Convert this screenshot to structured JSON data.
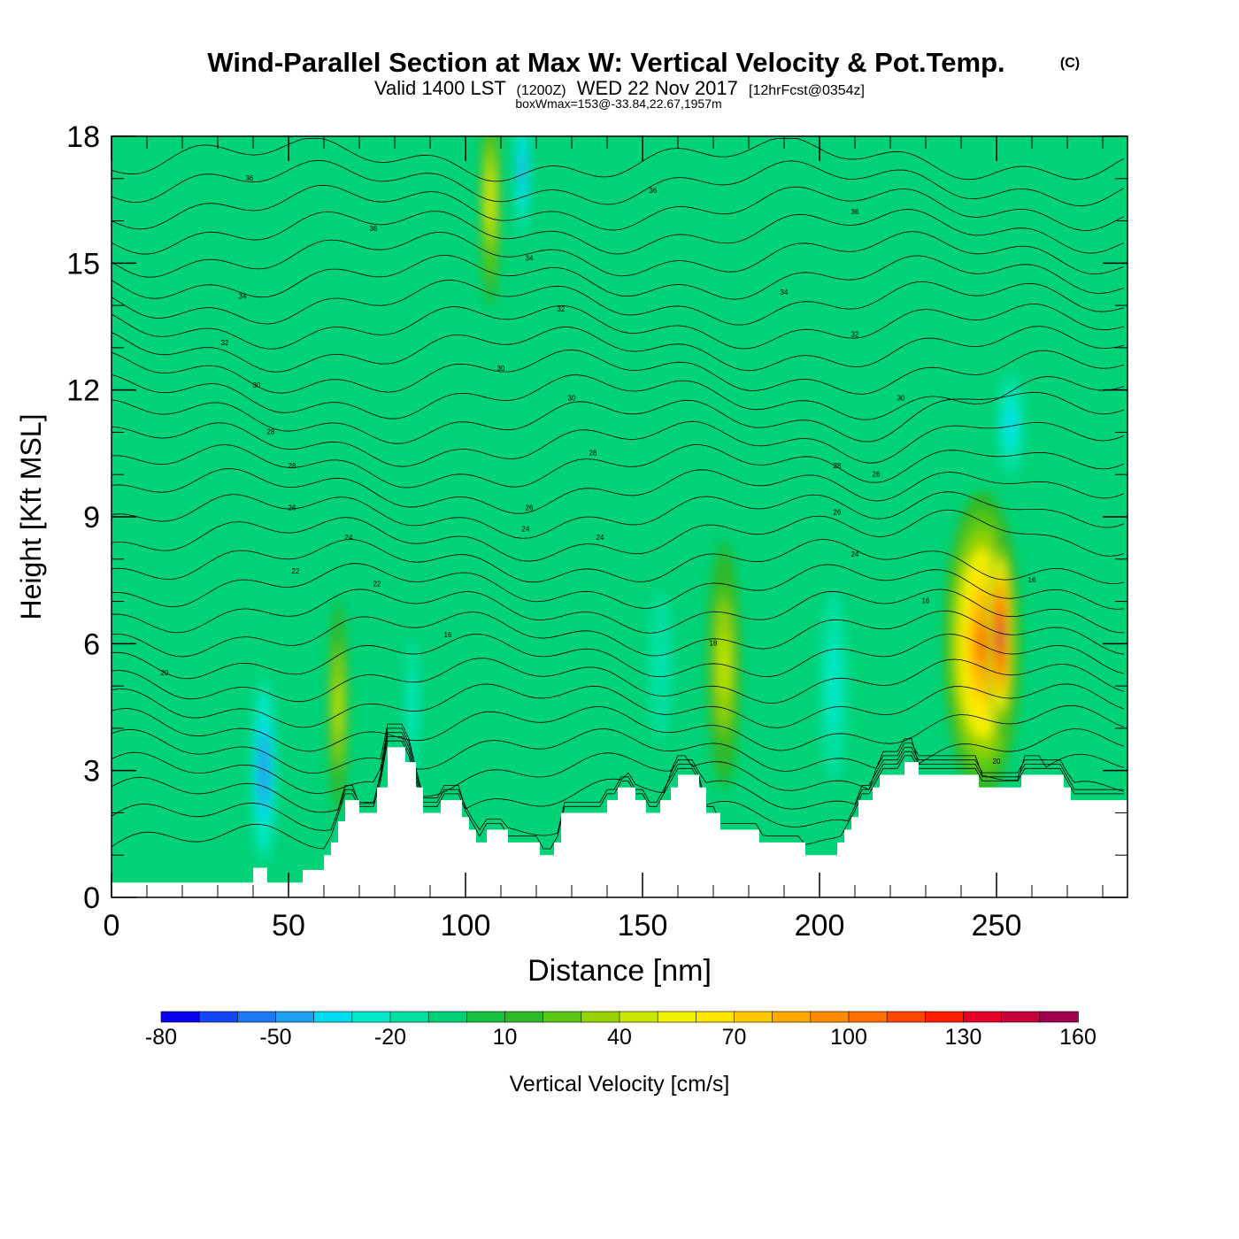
{
  "chart_data": {
    "type": "heatmap",
    "title": "Wind-Parallel Section at Max W: Vertical Velocity & Pot.Temp.",
    "title_mark": "(C)",
    "subtitle": {
      "valid_prefix": "Valid 1400 LST",
      "utc": "(1200Z)",
      "date": "WED 22 Nov 2017",
      "forecast": "[12hrFcst@0354z]"
    },
    "box_info": "boxWmax=153@-33.84,22.67,1957m",
    "xlabel": "Distance [nm]",
    "ylabel": "Height [Kft MSL]",
    "xlim": [
      0,
      287
    ],
    "ylim": [
      0,
      18
    ],
    "x_ticks": [
      0,
      50,
      100,
      150,
      200,
      250
    ],
    "y_ticks": [
      0,
      3,
      6,
      9,
      12,
      15,
      18
    ],
    "colorbar": {
      "label": "Vertical Velocity [cm/s]",
      "levels": [
        -80,
        -70,
        -60,
        -50,
        -40,
        -30,
        -20,
        -10,
        0,
        10,
        20,
        30,
        40,
        50,
        60,
        70,
        80,
        90,
        100,
        110,
        120,
        130,
        140,
        150,
        160
      ],
      "tick_labels": [
        "-80",
        "-50",
        "-20",
        "10",
        "40",
        "70",
        "100",
        "130",
        "160"
      ],
      "colors": [
        "#0a00f0",
        "#1446f5",
        "#1e78f0",
        "#1ea0f0",
        "#00dcf0",
        "#00e8c8",
        "#00e0a0",
        "#00d278",
        "#18c040",
        "#30b828",
        "#58c814",
        "#96d200",
        "#c8e600",
        "#f0f000",
        "#ffe600",
        "#ffc800",
        "#ffa800",
        "#ff8c00",
        "#ff6e00",
        "#ff4600",
        "#ff1e00",
        "#e60028",
        "#c8003c",
        "#a00050"
      ]
    },
    "w_features": [
      {
        "x": 43,
        "y": 3.0,
        "rx": 4,
        "ry": 2.5,
        "value": -55
      },
      {
        "x": 64,
        "y": 4.5,
        "rx": 3,
        "ry": 2.6,
        "value": 48
      },
      {
        "x": 85,
        "y": 4.5,
        "rx": 2.5,
        "ry": 2.2,
        "value": -30
      },
      {
        "x": 107,
        "y": 16.5,
        "rx": 3,
        "ry": 2.6,
        "value": 58
      },
      {
        "x": 116,
        "y": 17.2,
        "rx": 2.5,
        "ry": 1.8,
        "value": -50
      },
      {
        "x": 155,
        "y": 5.5,
        "rx": 5,
        "ry": 2.8,
        "value": -22
      },
      {
        "x": 173,
        "y": 5.5,
        "rx": 5,
        "ry": 3.0,
        "value": 48
      },
      {
        "x": 204,
        "y": 5.0,
        "rx": 5,
        "ry": 3.0,
        "value": -28
      },
      {
        "x": 246,
        "y": 6.0,
        "rx": 11,
        "ry": 3.6,
        "value": 100
      },
      {
        "x": 251,
        "y": 6.2,
        "rx": 3.5,
        "ry": 2.4,
        "value": 153
      },
      {
        "x": 254,
        "y": 11.2,
        "rx": 5,
        "ry": 1.6,
        "value": -40
      }
    ],
    "theta_contours": {
      "label_values": [
        "36",
        "36",
        "36",
        "36",
        "34",
        "34",
        "34",
        "32",
        "32",
        "32",
        "30",
        "30",
        "30",
        "30",
        "28",
        "28",
        "28",
        "28",
        "26",
        "26",
        "26",
        "26",
        "24",
        "24",
        "24",
        "24",
        "22",
        "22",
        "20",
        "20",
        "18",
        "16",
        "16",
        "16"
      ]
    },
    "terrain_kft": [
      [
        0,
        0.35
      ],
      [
        40,
        0.35
      ],
      [
        40,
        0.7
      ],
      [
        44,
        0.7
      ],
      [
        44,
        0.35
      ],
      [
        54,
        0.35
      ],
      [
        54,
        0.65
      ],
      [
        60,
        0.65
      ],
      [
        60,
        1.0
      ],
      [
        62,
        1.0
      ],
      [
        62,
        1.3
      ],
      [
        64,
        1.3
      ],
      [
        64,
        1.8
      ],
      [
        66,
        1.8
      ],
      [
        66,
        2.3
      ],
      [
        70,
        2.3
      ],
      [
        70,
        2.0
      ],
      [
        75,
        2.0
      ],
      [
        75,
        2.6
      ],
      [
        78,
        2.6
      ],
      [
        78,
        3.55
      ],
      [
        83,
        3.55
      ],
      [
        83,
        3.2
      ],
      [
        86,
        3.2
      ],
      [
        86,
        2.6
      ],
      [
        88,
        2.6
      ],
      [
        88,
        2.0
      ],
      [
        93,
        2.0
      ],
      [
        93,
        2.3
      ],
      [
        99,
        2.3
      ],
      [
        99,
        1.9
      ],
      [
        101,
        1.9
      ],
      [
        101,
        1.6
      ],
      [
        103,
        1.6
      ],
      [
        103,
        1.3
      ],
      [
        106,
        1.3
      ],
      [
        106,
        1.6
      ],
      [
        112,
        1.6
      ],
      [
        112,
        1.3
      ],
      [
        121,
        1.3
      ],
      [
        121,
        1.0
      ],
      [
        125,
        1.0
      ],
      [
        125,
        1.3
      ],
      [
        127,
        1.3
      ],
      [
        127,
        2.0
      ],
      [
        140,
        2.0
      ],
      [
        140,
        2.3
      ],
      [
        143,
        2.3
      ],
      [
        143,
        2.6
      ],
      [
        148,
        2.6
      ],
      [
        148,
        2.3
      ],
      [
        151,
        2.3
      ],
      [
        151,
        2.0
      ],
      [
        155,
        2.0
      ],
      [
        155,
        2.3
      ],
      [
        158,
        2.3
      ],
      [
        158,
        2.6
      ],
      [
        160,
        2.6
      ],
      [
        160,
        2.9
      ],
      [
        166,
        2.9
      ],
      [
        166,
        2.6
      ],
      [
        168,
        2.6
      ],
      [
        168,
        2.0
      ],
      [
        172,
        2.0
      ],
      [
        172,
        1.6
      ],
      [
        183,
        1.6
      ],
      [
        183,
        1.3
      ],
      [
        196,
        1.3
      ],
      [
        196,
        1.0
      ],
      [
        205,
        1.0
      ],
      [
        205,
        1.3
      ],
      [
        207,
        1.3
      ],
      [
        207,
        1.6
      ],
      [
        209,
        1.6
      ],
      [
        209,
        1.9
      ],
      [
        211,
        1.9
      ],
      [
        211,
        2.3
      ],
      [
        215,
        2.3
      ],
      [
        215,
        2.6
      ],
      [
        217,
        2.6
      ],
      [
        217,
        2.9
      ],
      [
        224,
        2.9
      ],
      [
        224,
        3.2
      ],
      [
        228,
        3.2
      ],
      [
        228,
        2.9
      ],
      [
        245,
        2.9
      ],
      [
        245,
        2.6
      ],
      [
        257,
        2.6
      ],
      [
        257,
        2.9
      ],
      [
        269,
        2.9
      ],
      [
        269,
        2.6
      ],
      [
        271,
        2.6
      ],
      [
        271,
        2.3
      ],
      [
        287,
        2.3
      ]
    ]
  }
}
